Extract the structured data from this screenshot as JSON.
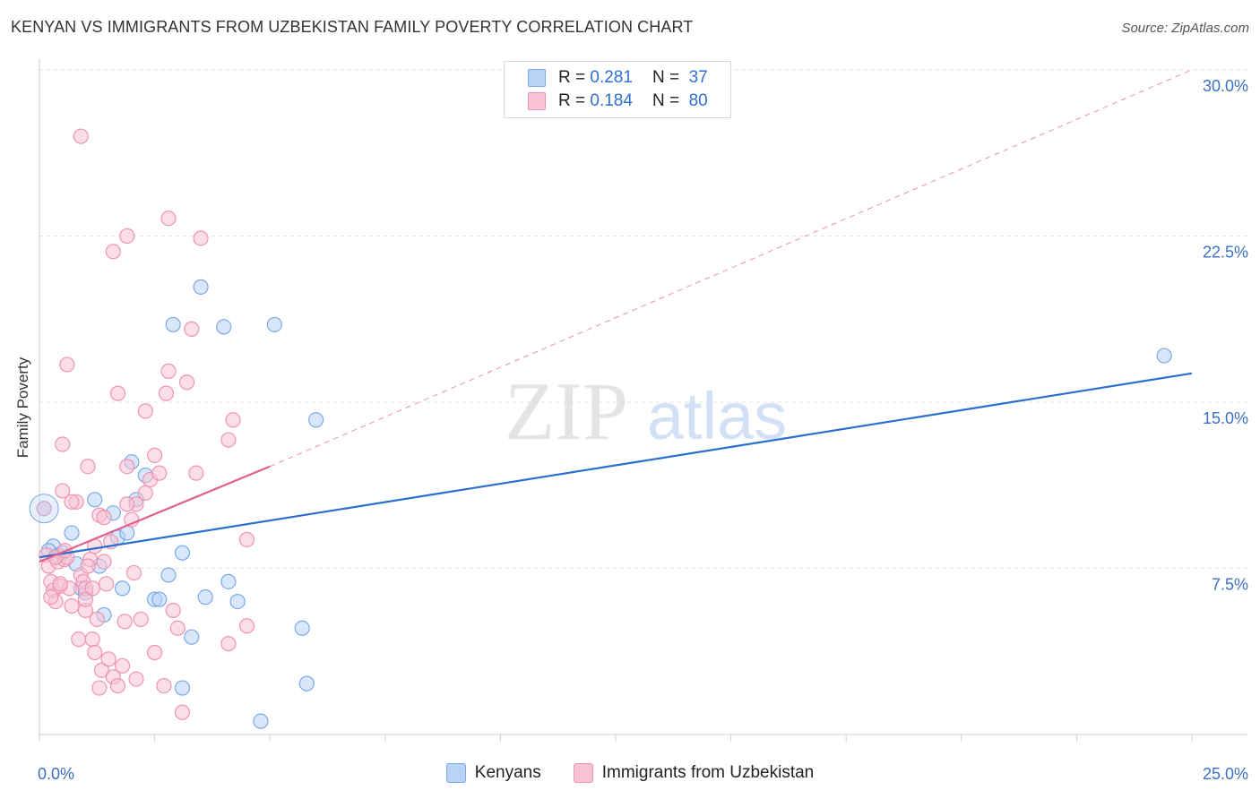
{
  "title": "KENYAN VS IMMIGRANTS FROM UZBEKISTAN FAMILY POVERTY CORRELATION CHART",
  "source": "Source: ZipAtlas.com",
  "watermark": {
    "zip": "ZIP",
    "atlas": "atlas"
  },
  "legend": {
    "r_label": "R =",
    "n_label": "N =",
    "series": [
      {
        "r": "0.281",
        "n": "37"
      },
      {
        "r": "0.184",
        "n": "80"
      }
    ]
  },
  "bottom_legend": [
    "Kenyans",
    "Immigrants from Uzbekistan"
  ],
  "chart_data": {
    "type": "scatter",
    "title": "KENYAN VS IMMIGRANTS FROM UZBEKISTAN FAMILY POVERTY CORRELATION CHART",
    "xlabel": "",
    "ylabel": "Family Poverty",
    "xlim": [
      0,
      25
    ],
    "ylim": [
      0,
      30
    ],
    "x_tick_labels": [
      {
        "value": 0,
        "label": "0.0%"
      },
      {
        "value": 25,
        "label": "25.0%"
      }
    ],
    "y_tick_labels": [
      {
        "value": 7.5,
        "label": "7.5%"
      },
      {
        "value": 15,
        "label": "15.0%"
      },
      {
        "value": 22.5,
        "label": "22.5%"
      },
      {
        "value": 30,
        "label": "30.0%"
      }
    ],
    "colors": {
      "kenyans_fill": "#b9d3f5",
      "kenyans_stroke": "#7aa8e8",
      "kenyans_line": "#2a6fcf",
      "uzbek_fill": "#f7c3d3",
      "uzbek_stroke": "#ee93b1",
      "uzbek_line": "#e0608c",
      "tick_label": "#3b6fc4",
      "grid": "#e4e4e4"
    },
    "series": [
      {
        "name": "Kenyans",
        "points": [
          [
            0.1,
            10.2
          ],
          [
            0.3,
            8.5
          ],
          [
            0.4,
            8.1
          ],
          [
            0.5,
            8.2
          ],
          [
            0.7,
            9.1
          ],
          [
            0.8,
            7.7
          ],
          [
            0.9,
            6.6
          ],
          [
            1.0,
            6.4
          ],
          [
            1.2,
            10.6
          ],
          [
            1.3,
            7.6
          ],
          [
            1.4,
            5.4
          ],
          [
            1.6,
            10.0
          ],
          [
            1.7,
            8.9
          ],
          [
            1.8,
            6.6
          ],
          [
            1.9,
            9.1
          ],
          [
            2.0,
            12.3
          ],
          [
            2.1,
            10.6
          ],
          [
            2.3,
            11.7
          ],
          [
            2.5,
            6.1
          ],
          [
            2.6,
            6.1
          ],
          [
            2.8,
            7.2
          ],
          [
            2.9,
            18.5
          ],
          [
            3.1,
            8.2
          ],
          [
            3.1,
            2.1
          ],
          [
            3.3,
            4.4
          ],
          [
            3.5,
            20.2
          ],
          [
            3.6,
            6.2
          ],
          [
            4.0,
            18.4
          ],
          [
            4.1,
            6.9
          ],
          [
            4.3,
            6.0
          ],
          [
            4.8,
            0.6
          ],
          [
            5.1,
            18.5
          ],
          [
            5.7,
            4.8
          ],
          [
            5.8,
            2.3
          ],
          [
            6.0,
            14.2
          ],
          [
            24.4,
            17.1
          ],
          [
            0.2,
            8.3
          ]
        ],
        "trend": {
          "x": [
            0,
            25
          ],
          "y": [
            8.0,
            16.3
          ],
          "style": "solid"
        }
      },
      {
        "name": "Immigrants from Uzbekistan",
        "points": [
          [
            0.1,
            10.2
          ],
          [
            0.15,
            8.1
          ],
          [
            0.2,
            7.6
          ],
          [
            0.25,
            6.9
          ],
          [
            0.3,
            6.5
          ],
          [
            0.35,
            6.0
          ],
          [
            0.4,
            7.8
          ],
          [
            0.45,
            6.7
          ],
          [
            0.5,
            13.1
          ],
          [
            0.55,
            7.9
          ],
          [
            0.6,
            8.0
          ],
          [
            0.65,
            6.6
          ],
          [
            0.7,
            5.8
          ],
          [
            0.6,
            16.7
          ],
          [
            0.8,
            10.5
          ],
          [
            0.85,
            4.3
          ],
          [
            0.9,
            7.2
          ],
          [
            0.95,
            6.9
          ],
          [
            1.0,
            5.6
          ],
          [
            1.0,
            6.6
          ],
          [
            1.05,
            12.1
          ],
          [
            1.1,
            7.9
          ],
          [
            1.15,
            4.3
          ],
          [
            1.2,
            8.5
          ],
          [
            1.2,
            3.7
          ],
          [
            1.25,
            5.2
          ],
          [
            1.3,
            9.9
          ],
          [
            1.3,
            2.1
          ],
          [
            1.35,
            2.9
          ],
          [
            1.4,
            7.8
          ],
          [
            1.45,
            6.8
          ],
          [
            1.5,
            3.4
          ],
          [
            1.55,
            8.7
          ],
          [
            1.6,
            2.6
          ],
          [
            1.6,
            21.8
          ],
          [
            1.7,
            15.4
          ],
          [
            1.7,
            2.2
          ],
          [
            1.8,
            3.1
          ],
          [
            1.85,
            5.1
          ],
          [
            1.9,
            12.1
          ],
          [
            1.9,
            22.5
          ],
          [
            2.0,
            9.7
          ],
          [
            2.05,
            7.3
          ],
          [
            2.1,
            2.5
          ],
          [
            2.1,
            10.4
          ],
          [
            2.2,
            5.2
          ],
          [
            2.3,
            14.6
          ],
          [
            2.3,
            10.9
          ],
          [
            2.4,
            11.5
          ],
          [
            2.5,
            3.7
          ],
          [
            2.5,
            12.6
          ],
          [
            2.6,
            11.8
          ],
          [
            2.7,
            2.2
          ],
          [
            2.75,
            15.4
          ],
          [
            2.8,
            16.4
          ],
          [
            2.8,
            23.3
          ],
          [
            2.9,
            5.6
          ],
          [
            3.0,
            4.8
          ],
          [
            3.1,
            1.0
          ],
          [
            3.2,
            15.9
          ],
          [
            3.3,
            18.3
          ],
          [
            3.4,
            11.8
          ],
          [
            3.5,
            22.4
          ],
          [
            4.1,
            13.3
          ],
          [
            4.1,
            4.1
          ],
          [
            4.2,
            14.2
          ],
          [
            4.5,
            8.8
          ],
          [
            4.5,
            4.9
          ],
          [
            0.9,
            27.0
          ],
          [
            0.5,
            11.0
          ],
          [
            0.7,
            10.5
          ],
          [
            0.45,
            6.8
          ],
          [
            1.0,
            6.1
          ],
          [
            1.4,
            9.8
          ],
          [
            0.35,
            8.0
          ],
          [
            0.55,
            8.3
          ],
          [
            1.05,
            7.6
          ],
          [
            0.25,
            6.2
          ],
          [
            1.9,
            10.4
          ],
          [
            1.15,
            6.6
          ]
        ],
        "trend": {
          "x": [
            0,
            5.0
          ],
          "y": [
            7.8,
            12.1
          ],
          "style": "solid"
        },
        "trend_extension": {
          "x": [
            5.0,
            25
          ],
          "y": [
            12.1,
            30.0
          ],
          "style": "dashed"
        }
      }
    ]
  }
}
